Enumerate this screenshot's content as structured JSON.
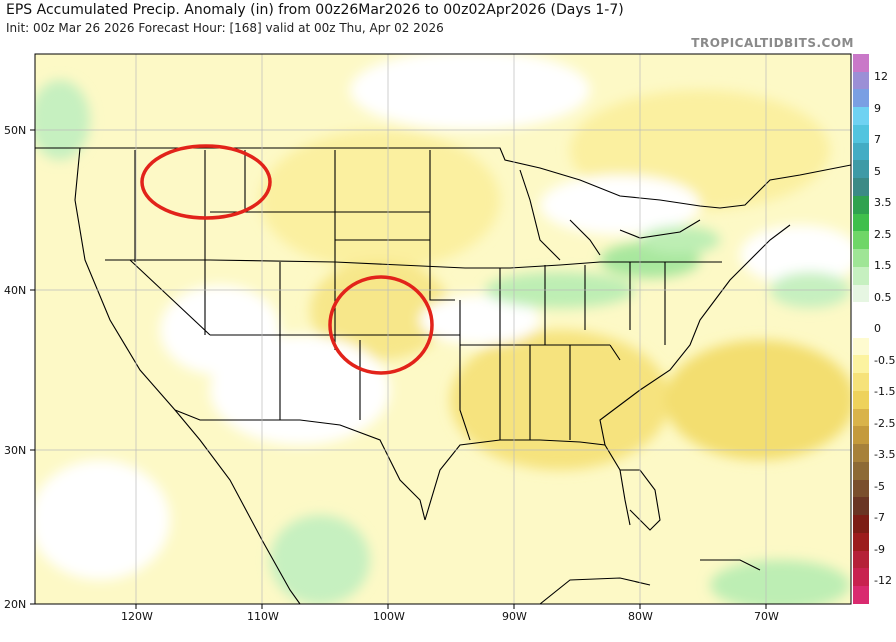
{
  "header": {
    "title": "EPS Accumulated Precip. Anomaly (in) from 00z26Mar2026 to 00z02Apr2026 (Days 1-7)",
    "subtitle": "Init: 00z Mar 26 2026   Forecast Hour: [168]   valid at 00z Thu, Apr 02 2026",
    "brand": "TROPICALTIDBITS.COM"
  },
  "axes": {
    "lat_labels": [
      "50N",
      "40N",
      "30N",
      "20N"
    ],
    "lon_labels": [
      "120W",
      "110W",
      "100W",
      "90W",
      "80W",
      "70W"
    ]
  },
  "colorbar": {
    "labels": [
      "12",
      "9",
      "7",
      "5",
      "3.5",
      "2.5",
      "1.5",
      "0.5",
      "0",
      "-0.5",
      "-1.5",
      "-2.5",
      "-3.5",
      "-5",
      "-7",
      "-9",
      "-12"
    ],
    "colors": [
      "#c978c8",
      "#9b8fd6",
      "#7a9fe3",
      "#6fd2f2",
      "#52c4df",
      "#43acc4",
      "#3e9aa6",
      "#3b8a86",
      "#2fa24f",
      "#3fbf4c",
      "#6fd667",
      "#9fe596",
      "#c6f0c0",
      "#e6f6e2",
      "#ffffff",
      "#ffffff",
      "#fefbd0",
      "#fcf3a0",
      "#f6e27a",
      "#eed25c",
      "#d9b34a",
      "#c49a3c",
      "#a7813a",
      "#8d6a35",
      "#7a4f2d",
      "#6a3524",
      "#7c1d15",
      "#9c1c1c",
      "#b52138",
      "#c8224f",
      "#d92a6f"
    ]
  },
  "annotations": {
    "circle_color": "#e2231a"
  }
}
